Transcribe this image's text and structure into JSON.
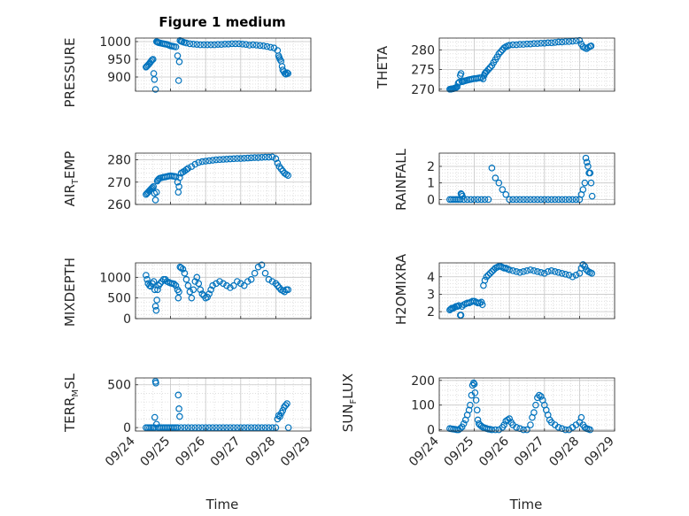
{
  "figure": {
    "title": "Figure 1 medium",
    "xlabel": "Time"
  },
  "marker_color": "#0072BD",
  "chart_data": [
    {
      "type": "scatter",
      "ylabel": "PRESSURE",
      "xticks": [
        "09/24",
        "09/25",
        "09/26",
        "09/27",
        "09/28",
        "09/29"
      ],
      "xlim": [
        0,
        5
      ],
      "yticks": [
        900,
        950,
        1000
      ],
      "ylim": [
        860,
        1010
      ],
      "grid": true,
      "x": [
        0.3,
        0.32,
        0.35,
        0.38,
        0.41,
        0.44,
        0.47,
        0.5,
        0.52,
        0.54,
        0.57,
        0.6,
        0.62,
        0.64,
        0.66,
        0.7,
        0.75,
        0.8,
        0.85,
        0.9,
        0.95,
        1.0,
        1.05,
        1.1,
        1.15,
        1.2,
        1.23,
        1.25,
        1.27,
        1.3,
        1.33,
        1.38,
        1.45,
        1.55,
        1.65,
        1.75,
        1.85,
        1.95,
        2.05,
        2.15,
        2.25,
        2.35,
        2.45,
        2.55,
        2.65,
        2.75,
        2.85,
        2.95,
        3.05,
        3.15,
        3.25,
        3.35,
        3.45,
        3.55,
        3.65,
        3.75,
        3.85,
        3.95,
        4.05,
        4.08,
        4.1,
        4.12,
        4.15,
        4.18,
        4.2,
        4.23,
        4.26,
        4.29,
        4.32,
        4.35
      ],
      "y": [
        928,
        930,
        933,
        936,
        940,
        944,
        948,
        950,
        910,
        893,
        865,
        1000,
        999,
        998,
        997,
        996,
        995,
        994,
        993,
        992,
        990,
        988,
        987,
        986,
        985,
        960,
        890,
        943,
        1003,
        1001,
        1000,
        998,
        996,
        994,
        993,
        992,
        991,
        991,
        991,
        991,
        991,
        992,
        992,
        993,
        993,
        994,
        994,
        994,
        993,
        992,
        990,
        991,
        990,
        989,
        988,
        986,
        984,
        982,
        975,
        960,
        955,
        950,
        945,
        930,
        920,
        915,
        910,
        908,
        912,
        910
      ]
    },
    {
      "type": "scatter",
      "ylabel": "THETA",
      "xticks": [
        "09/24",
        "09/25",
        "09/26",
        "09/27",
        "09/28",
        "09/29"
      ],
      "xlim": [
        0,
        5
      ],
      "yticks": [
        270,
        275,
        280
      ],
      "ylim": [
        269.5,
        283
      ],
      "grid": true,
      "x": [
        0.3,
        0.33,
        0.36,
        0.39,
        0.42,
        0.45,
        0.48,
        0.51,
        0.54,
        0.57,
        0.6,
        0.62,
        0.65,
        0.68,
        0.72,
        0.76,
        0.8,
        0.85,
        0.9,
        0.95,
        1.0,
        1.05,
        1.1,
        1.15,
        1.2,
        1.25,
        1.28,
        1.3,
        1.32,
        1.35,
        1.4,
        1.45,
        1.5,
        1.55,
        1.6,
        1.65,
        1.7,
        1.75,
        1.8,
        1.85,
        1.9,
        1.95,
        2.0,
        2.1,
        2.2,
        2.3,
        2.4,
        2.5,
        2.6,
        2.7,
        2.8,
        2.9,
        3.0,
        3.1,
        3.2,
        3.3,
        3.4,
        3.5,
        3.6,
        3.7,
        3.8,
        3.9,
        4.0,
        4.05,
        4.1,
        4.15,
        4.2,
        4.25,
        4.3,
        4.33
      ],
      "y": [
        270.0,
        270.0,
        270.1,
        270.1,
        270.2,
        270.3,
        270.4,
        270.6,
        271.5,
        271.8,
        273.5,
        274.0,
        271.9,
        272.0,
        272.1,
        272.2,
        272.3,
        272.4,
        272.5,
        272.6,
        272.7,
        272.7,
        272.8,
        272.9,
        272.9,
        272.6,
        273.5,
        274.0,
        274.2,
        274.5,
        275.0,
        275.5,
        276.0,
        276.8,
        277.5,
        278.2,
        279.0,
        279.5,
        280.0,
        280.5,
        280.8,
        281.0,
        281.2,
        281.3,
        281.3,
        281.4,
        281.4,
        281.5,
        281.5,
        281.6,
        281.6,
        281.7,
        281.7,
        281.8,
        281.8,
        281.9,
        282.0,
        282.0,
        282.1,
        282.1,
        282.2,
        282.3,
        282.4,
        281.5,
        280.8,
        280.5,
        280.3,
        280.6,
        280.9,
        281.0
      ]
    },
    {
      "type": "scatter",
      "ylabel": "AIR_TEMP",
      "xticks": [
        "09/24",
        "09/25",
        "09/26",
        "09/27",
        "09/28",
        "09/29"
      ],
      "xlim": [
        0,
        5
      ],
      "yticks": [
        260,
        270,
        280
      ],
      "ylim": [
        260,
        283
      ],
      "grid": true,
      "x": [
        0.3,
        0.33,
        0.36,
        0.39,
        0.42,
        0.45,
        0.48,
        0.51,
        0.54,
        0.57,
        0.6,
        0.62,
        0.64,
        0.67,
        0.7,
        0.75,
        0.8,
        0.85,
        0.9,
        0.95,
        1.0,
        1.05,
        1.1,
        1.15,
        1.2,
        1.22,
        1.24,
        1.26,
        1.3,
        1.35,
        1.4,
        1.45,
        1.5,
        1.6,
        1.7,
        1.8,
        1.9,
        2.0,
        2.1,
        2.2,
        2.3,
        2.4,
        2.5,
        2.6,
        2.7,
        2.8,
        2.9,
        3.0,
        3.1,
        3.2,
        3.3,
        3.4,
        3.5,
        3.6,
        3.7,
        3.8,
        3.9,
        4.0,
        4.05,
        4.1,
        4.15,
        4.2,
        4.25,
        4.3,
        4.35
      ],
      "y": [
        264.5,
        265.0,
        265.5,
        266.0,
        266.5,
        267.0,
        267.5,
        268.0,
        265.0,
        262.0,
        265.5,
        270.5,
        271.0,
        271.5,
        271.8,
        272.0,
        272.2,
        272.3,
        272.5,
        272.7,
        272.8,
        272.7,
        272.6,
        272.4,
        270.0,
        265.5,
        268.0,
        272.0,
        274.0,
        274.5,
        275.0,
        275.6,
        276.2,
        277.0,
        278.0,
        278.8,
        279.2,
        279.4,
        279.6,
        279.8,
        280.0,
        280.1,
        280.2,
        280.3,
        280.4,
        280.5,
        280.6,
        280.6,
        280.7,
        280.8,
        280.9,
        281.0,
        281.0,
        281.1,
        281.2,
        281.2,
        281.3,
        280.5,
        278.5,
        277.0,
        276.0,
        275.0,
        274.0,
        273.5,
        273.0
      ]
    },
    {
      "type": "scatter",
      "ylabel": "RAINFALL",
      "xticks": [
        "09/24",
        "09/25",
        "09/26",
        "09/27",
        "09/28",
        "09/29"
      ],
      "xlim": [
        0,
        5
      ],
      "yticks": [
        0,
        1,
        2
      ],
      "ylim": [
        -0.3,
        2.8
      ],
      "grid": true,
      "x": [
        0.3,
        0.35,
        0.4,
        0.45,
        0.5,
        0.55,
        0.6,
        0.62,
        0.64,
        0.66,
        0.7,
        0.8,
        0.9,
        1.0,
        1.1,
        1.2,
        1.3,
        1.4,
        1.5,
        1.6,
        1.7,
        1.8,
        1.9,
        2.0,
        2.1,
        2.2,
        2.3,
        2.4,
        2.5,
        2.6,
        2.7,
        2.8,
        2.9,
        3.0,
        3.1,
        3.2,
        3.3,
        3.4,
        3.5,
        3.6,
        3.7,
        3.8,
        3.9,
        4.0,
        4.05,
        4.1,
        4.15,
        4.18,
        4.21,
        4.24,
        4.27,
        4.3,
        4.33,
        4.36
      ],
      "y": [
        0,
        0,
        0,
        0,
        0,
        0,
        0,
        0.35,
        0.3,
        0.2,
        0,
        0,
        0,
        0,
        0,
        0,
        0,
        0,
        1.9,
        1.3,
        1.0,
        0.6,
        0.3,
        0,
        0,
        0,
        0,
        0,
        0,
        0,
        0,
        0,
        0,
        0,
        0,
        0,
        0,
        0,
        0,
        0,
        0,
        0,
        0,
        0,
        0.3,
        0.6,
        1.0,
        2.5,
        2.25,
        2.0,
        1.6,
        1.6,
        1.0,
        0.2
      ]
    },
    {
      "type": "scatter",
      "ylabel": "MIXDEPTH",
      "xticks": [
        "09/24",
        "09/25",
        "09/26",
        "09/27",
        "09/28",
        "09/29"
      ],
      "xlim": [
        0,
        5
      ],
      "yticks": [
        0,
        500,
        1000
      ],
      "ylim": [
        0,
        1350
      ],
      "grid": true,
      "x": [
        0.3,
        0.33,
        0.36,
        0.4,
        0.44,
        0.48,
        0.52,
        0.55,
        0.57,
        0.59,
        0.61,
        0.63,
        0.66,
        0.7,
        0.75,
        0.8,
        0.85,
        0.9,
        0.95,
        1.0,
        1.05,
        1.1,
        1.15,
        1.2,
        1.22,
        1.24,
        1.27,
        1.3,
        1.35,
        1.4,
        1.45,
        1.5,
        1.55,
        1.6,
        1.65,
        1.7,
        1.75,
        1.8,
        1.85,
        1.9,
        1.95,
        2.0,
        2.05,
        2.1,
        2.15,
        2.2,
        2.3,
        2.4,
        2.5,
        2.6,
        2.7,
        2.8,
        2.9,
        3.0,
        3.1,
        3.2,
        3.3,
        3.4,
        3.5,
        3.6,
        3.7,
        3.8,
        3.9,
        4.0,
        4.05,
        4.1,
        4.15,
        4.2,
        4.25,
        4.3,
        4.35
      ],
      "y": [
        1050,
        950,
        850,
        800,
        780,
        850,
        900,
        700,
        300,
        200,
        450,
        700,
        800,
        850,
        900,
        950,
        950,
        900,
        880,
        860,
        850,
        840,
        800,
        700,
        500,
        650,
        1250,
        1230,
        1200,
        1100,
        950,
        800,
        650,
        500,
        700,
        900,
        1000,
        850,
        700,
        600,
        560,
        500,
        520,
        600,
        700,
        800,
        850,
        900,
        850,
        800,
        750,
        800,
        900,
        850,
        800,
        900,
        950,
        1100,
        1250,
        1300,
        1100,
        950,
        900,
        850,
        800,
        750,
        700,
        680,
        650,
        700,
        700
      ]
    },
    {
      "type": "scatter",
      "ylabel": "H2OMIXRA",
      "xticks": [
        "09/24",
        "09/25",
        "09/26",
        "09/27",
        "09/28",
        "09/29"
      ],
      "xlim": [
        0,
        5
      ],
      "yticks": [
        2,
        3,
        4
      ],
      "ylim": [
        1.6,
        4.8
      ],
      "grid": true,
      "x": [
        0.3,
        0.33,
        0.36,
        0.4,
        0.44,
        0.48,
        0.52,
        0.56,
        0.6,
        0.62,
        0.65,
        0.7,
        0.75,
        0.8,
        0.85,
        0.9,
        0.95,
        1.0,
        1.05,
        1.1,
        1.15,
        1.2,
        1.23,
        1.26,
        1.3,
        1.35,
        1.4,
        1.45,
        1.5,
        1.55,
        1.6,
        1.65,
        1.7,
        1.75,
        1.8,
        1.85,
        1.9,
        1.95,
        2.0,
        2.1,
        2.2,
        2.3,
        2.4,
        2.5,
        2.6,
        2.7,
        2.8,
        2.9,
        3.0,
        3.1,
        3.2,
        3.3,
        3.4,
        3.5,
        3.6,
        3.7,
        3.8,
        3.9,
        4.0,
        4.05,
        4.1,
        4.15,
        4.2,
        4.25,
        4.3,
        4.35
      ],
      "y": [
        2.1,
        2.15,
        2.2,
        2.2,
        2.25,
        2.3,
        2.3,
        2.35,
        1.8,
        1.8,
        2.3,
        2.4,
        2.45,
        2.5,
        2.5,
        2.55,
        2.6,
        2.6,
        2.55,
        2.5,
        2.5,
        2.55,
        2.4,
        3.5,
        3.8,
        4.0,
        4.1,
        4.2,
        4.3,
        4.4,
        4.5,
        4.55,
        4.6,
        4.6,
        4.55,
        4.5,
        4.5,
        4.45,
        4.4,
        4.35,
        4.3,
        4.25,
        4.3,
        4.35,
        4.4,
        4.35,
        4.3,
        4.25,
        4.2,
        4.3,
        4.35,
        4.3,
        4.25,
        4.2,
        4.15,
        4.1,
        4.0,
        4.1,
        4.2,
        4.5,
        4.7,
        4.6,
        4.4,
        4.3,
        4.25,
        4.2
      ]
    },
    {
      "type": "scatter",
      "ylabel": "TERR_MSL",
      "xticks": [
        "09/24",
        "09/25",
        "09/26",
        "09/27",
        "09/28",
        "09/29"
      ],
      "xlim": [
        0,
        5
      ],
      "yticks": [
        0,
        500
      ],
      "ylim": [
        -40,
        580
      ],
      "grid": true,
      "x": [
        0.3,
        0.35,
        0.4,
        0.45,
        0.5,
        0.54,
        0.55,
        0.57,
        0.58,
        0.6,
        0.65,
        0.7,
        0.75,
        0.8,
        0.85,
        0.9,
        0.95,
        1.0,
        1.05,
        1.1,
        1.15,
        1.2,
        1.22,
        1.24,
        1.26,
        1.3,
        1.4,
        1.5,
        1.6,
        1.7,
        1.8,
        1.9,
        2.0,
        2.1,
        2.2,
        2.3,
        2.4,
        2.5,
        2.6,
        2.7,
        2.8,
        2.9,
        3.0,
        3.1,
        3.2,
        3.3,
        3.4,
        3.5,
        3.6,
        3.7,
        3.8,
        3.9,
        4.0,
        4.05,
        4.08,
        4.12,
        4.16,
        4.2,
        4.24,
        4.28,
        4.32,
        4.36
      ],
      "y": [
        0,
        0,
        0,
        0,
        0,
        0,
        120,
        540,
        520,
        40,
        0,
        0,
        0,
        0,
        0,
        0,
        0,
        0,
        0,
        0,
        0,
        0,
        380,
        220,
        130,
        0,
        0,
        0,
        0,
        0,
        0,
        0,
        0,
        0,
        0,
        0,
        0,
        0,
        0,
        0,
        0,
        0,
        0,
        0,
        0,
        0,
        0,
        0,
        0,
        0,
        0,
        0,
        0,
        100,
        140,
        130,
        170,
        200,
        240,
        260,
        280,
        0
      ]
    },
    {
      "type": "scatter",
      "ylabel": "SUN_FLUX",
      "xticks": [
        "09/24",
        "09/25",
        "09/26",
        "09/27",
        "09/28",
        "09/29"
      ],
      "xlim": [
        0,
        5
      ],
      "yticks": [
        0,
        100,
        200
      ],
      "ylim": [
        -5,
        210
      ],
      "grid": true,
      "x": [
        0.3,
        0.35,
        0.4,
        0.45,
        0.5,
        0.55,
        0.6,
        0.65,
        0.7,
        0.75,
        0.8,
        0.85,
        0.88,
        0.92,
        0.95,
        0.98,
        1.0,
        1.02,
        1.05,
        1.08,
        1.1,
        1.13,
        1.16,
        1.2,
        1.25,
        1.3,
        1.35,
        1.4,
        1.45,
        1.5,
        1.6,
        1.7,
        1.8,
        1.85,
        1.9,
        1.95,
        2.0,
        2.05,
        2.1,
        2.2,
        2.3,
        2.4,
        2.5,
        2.6,
        2.65,
        2.7,
        2.75,
        2.8,
        2.85,
        2.9,
        2.95,
        3.0,
        3.05,
        3.1,
        3.15,
        3.2,
        3.3,
        3.4,
        3.5,
        3.6,
        3.7,
        3.8,
        3.9,
        4.0,
        4.05,
        4.1,
        4.15,
        4.2,
        4.25,
        4.3
      ],
      "y": [
        5,
        4,
        3,
        2,
        0,
        0,
        5,
        12,
        25,
        40,
        60,
        80,
        100,
        140,
        180,
        190,
        185,
        150,
        120,
        80,
        40,
        25,
        20,
        15,
        10,
        8,
        5,
        3,
        2,
        0,
        0,
        0,
        10,
        20,
        35,
        40,
        45,
        30,
        20,
        10,
        5,
        0,
        0,
        20,
        50,
        70,
        100,
        130,
        140,
        135,
        120,
        100,
        80,
        60,
        40,
        30,
        20,
        10,
        5,
        0,
        0,
        10,
        20,
        30,
        50,
        20,
        10,
        5,
        3,
        0
      ]
    }
  ]
}
